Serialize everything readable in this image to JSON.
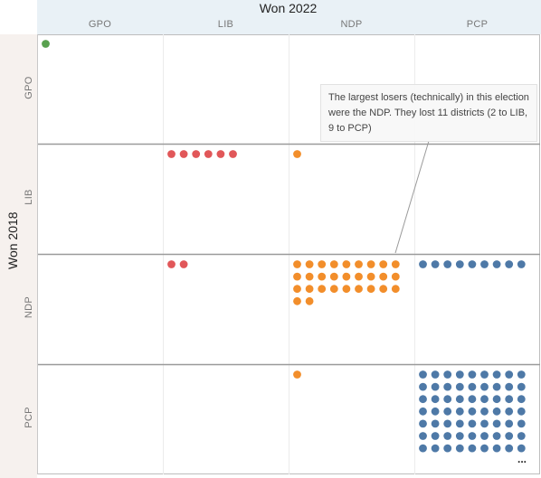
{
  "chart_data": {
    "type": "scatter",
    "column_title": "Won 2022",
    "row_title": "Won 2018",
    "columns": [
      "GPO",
      "LIB",
      "NDP",
      "PCP"
    ],
    "rows": [
      "GPO",
      "LIB",
      "NDP",
      "PCP"
    ],
    "colors": {
      "GPO": "#59a14f",
      "LIB": "#e15759",
      "NDP": "#f28e2b",
      "PCP": "#4e79a7"
    },
    "cells": [
      {
        "row": "GPO",
        "col": "GPO",
        "count": 1
      },
      {
        "row": "LIB",
        "col": "LIB",
        "count": 6
      },
      {
        "row": "LIB",
        "col": "NDP",
        "count": 1
      },
      {
        "row": "NDP",
        "col": "LIB",
        "count": 2
      },
      {
        "row": "NDP",
        "col": "NDP",
        "count": 29
      },
      {
        "row": "NDP",
        "col": "PCP",
        "count": 9
      },
      {
        "row": "PCP",
        "col": "NDP",
        "count": 1
      },
      {
        "row": "PCP",
        "col": "PCP",
        "count": 63
      }
    ],
    "overflow_marker": "...",
    "annotation": "The largest losers (technically) in this election were the NDP. They lost 11 districts (2 to LIB, 9 to PCP)"
  }
}
